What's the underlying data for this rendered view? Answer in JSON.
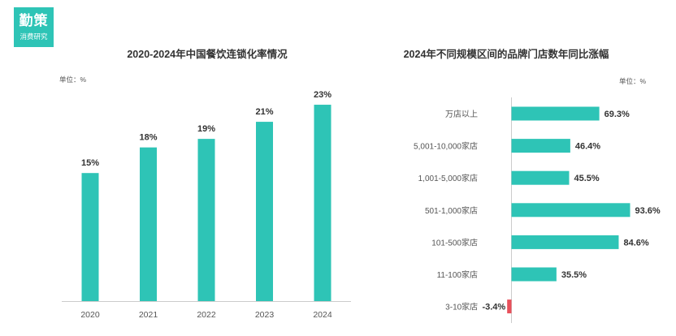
{
  "brand": {
    "name": "勤策",
    "subtitle": "消费研究"
  },
  "colors": {
    "primary": "#2ec4b6",
    "negative": "#e8505b",
    "axis": "#cccccc"
  },
  "chart_data": [
    {
      "type": "bar",
      "title": "2020-2024年中国餐饮连锁化率情况",
      "unit_label": "单位：%",
      "categories": [
        "2020",
        "2021",
        "2022",
        "2023",
        "2024"
      ],
      "values": [
        15,
        18,
        19,
        21,
        23
      ],
      "value_labels": [
        "15%",
        "18%",
        "19%",
        "21%",
        "23%"
      ],
      "ylim": [
        0,
        25
      ],
      "grid": false
    },
    {
      "type": "bar",
      "orientation": "horizontal",
      "title": "2024年不同规模区间的品牌门店数年同比涨幅",
      "unit_label": "单位：%",
      "categories": [
        "万店以上",
        "5,001-10,000家店",
        "1,001-5,000家店",
        "501-1,000家店",
        "101-500家店",
        "11-100家店",
        "3-10家店"
      ],
      "values": [
        69.3,
        46.4,
        45.5,
        93.6,
        84.6,
        35.5,
        -3.4
      ],
      "value_labels": [
        "69.3%",
        "46.4%",
        "45.5%",
        "93.6%",
        "84.6%",
        "35.5%",
        "-3.4%"
      ],
      "xlim": [
        -4,
        100
      ],
      "grid": false
    }
  ]
}
